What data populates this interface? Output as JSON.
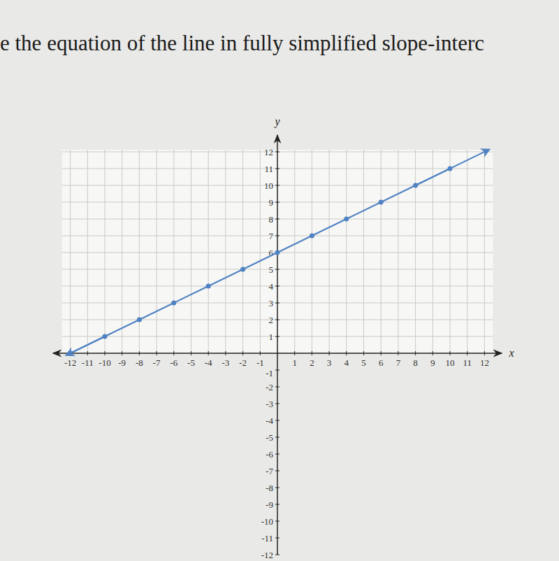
{
  "chart_data": {
    "type": "line",
    "title": "e the equation of the line in fully simplified slope-interc",
    "x_label": "x",
    "y_label": "y",
    "x": [
      -12,
      -10,
      -8,
      -6,
      -4,
      -2,
      0,
      2,
      4,
      6,
      8,
      10
    ],
    "series": [
      {
        "color": "#4f82c2",
        "marker": "circle",
        "values": [
          0,
          1,
          2,
          3,
          4,
          5,
          6,
          7,
          8,
          9,
          10,
          11
        ]
      }
    ],
    "xlim": [
      -13,
      13
    ],
    "ylim": [
      -12,
      13
    ],
    "xticks": [
      -12,
      -11,
      -10,
      -9,
      -8,
      -7,
      -6,
      -5,
      -4,
      -3,
      -2,
      -1,
      1,
      2,
      3,
      4,
      5,
      6,
      7,
      8,
      9,
      10,
      11,
      12
    ],
    "yticks": [
      -12,
      -11,
      -10,
      -9,
      -8,
      -7,
      -6,
      -5,
      -4,
      -3,
      -2,
      -1,
      1,
      2,
      3,
      4,
      5,
      6,
      7,
      8,
      9,
      10,
      11,
      12
    ],
    "grid": true
  }
}
